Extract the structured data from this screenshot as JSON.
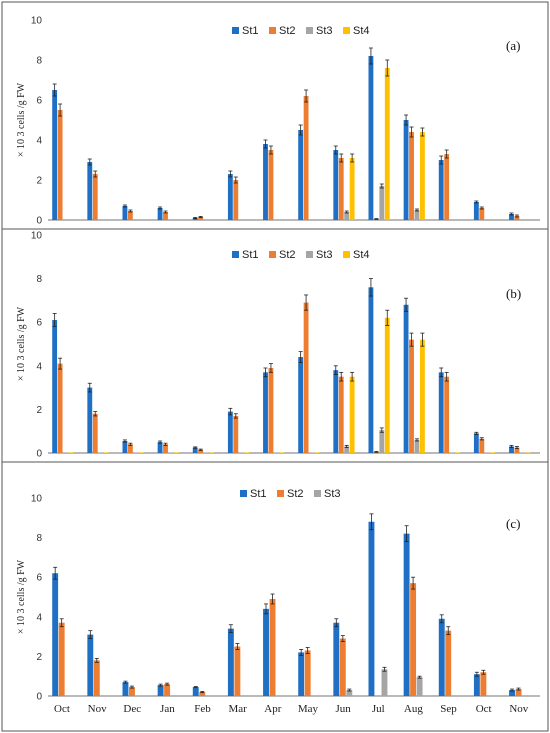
{
  "colors": {
    "St1": "#1f6fc4",
    "St2": "#ed7d31",
    "St3": "#a5a5a5",
    "St4": "#ffc000"
  },
  "chart_data": [
    {
      "type": "bar",
      "panel_label": "(a)",
      "ylabel": "× 10 3 cells /g FW",
      "ylim": [
        0,
        10
      ],
      "yticks": [
        0,
        2,
        4,
        6,
        8,
        10
      ],
      "legend_placement": "top-center",
      "categories": [
        "Oct",
        "Nov",
        "Dec",
        "Jan",
        "Feb",
        "Mar",
        "Apr",
        "May",
        "Jun",
        "Jul",
        "Aug",
        "Sep",
        "Oct",
        "Nov"
      ],
      "show_category_labels": false,
      "series": [
        {
          "name": "St1",
          "values": [
            6.5,
            2.9,
            0.7,
            0.6,
            0.1,
            2.3,
            3.8,
            4.5,
            3.5,
            8.2,
            5.0,
            3.0,
            0.9,
            0.3
          ],
          "errors": [
            0.3,
            0.15,
            0.05,
            0.05,
            0.03,
            0.15,
            0.2,
            0.25,
            0.2,
            0.4,
            0.25,
            0.2,
            0.05,
            0.05
          ]
        },
        {
          "name": "St2",
          "values": [
            5.5,
            2.3,
            0.45,
            0.4,
            0.15,
            2.0,
            3.5,
            6.2,
            3.1,
            0.05,
            4.4,
            3.3,
            0.6,
            0.2
          ],
          "errors": [
            0.3,
            0.15,
            0.05,
            0.05,
            0.03,
            0.15,
            0.2,
            0.3,
            0.2,
            0.02,
            0.25,
            0.2,
            0.05,
            0.05
          ]
        },
        {
          "name": "St3",
          "values": [
            null,
            null,
            null,
            null,
            null,
            null,
            null,
            null,
            0.4,
            1.7,
            0.5,
            null,
            null,
            null
          ],
          "errors": [
            null,
            null,
            null,
            null,
            null,
            null,
            null,
            null,
            0.05,
            0.1,
            0.05,
            null,
            null,
            null
          ]
        },
        {
          "name": "St4",
          "values": [
            null,
            null,
            null,
            null,
            null,
            null,
            null,
            null,
            3.1,
            7.6,
            4.4,
            null,
            null,
            null
          ],
          "errors": [
            null,
            null,
            null,
            null,
            null,
            null,
            null,
            null,
            0.2,
            0.4,
            0.2,
            null,
            null,
            null
          ]
        }
      ]
    },
    {
      "type": "bar",
      "panel_label": "(b)",
      "ylabel": "× 10 3 cells /g FW",
      "ylim": [
        0,
        10
      ],
      "yticks": [
        0,
        2,
        4,
        6,
        8,
        10
      ],
      "legend_placement": "top-center",
      "categories": [
        "Oct",
        "Nov",
        "Dec",
        "Jan",
        "Feb",
        "Mar",
        "Apr",
        "May",
        "Jun",
        "Jul",
        "Aug",
        "Sep",
        "Oct",
        "Nov"
      ],
      "show_category_labels": false,
      "series": [
        {
          "name": "St1",
          "values": [
            6.1,
            3.0,
            0.55,
            0.5,
            0.25,
            1.9,
            3.7,
            4.4,
            3.8,
            7.6,
            6.8,
            3.7,
            0.9,
            0.3
          ],
          "errors": [
            0.3,
            0.2,
            0.05,
            0.05,
            0.03,
            0.15,
            0.2,
            0.25,
            0.2,
            0.4,
            0.3,
            0.2,
            0.05,
            0.05
          ]
        },
        {
          "name": "St2",
          "values": [
            4.1,
            1.8,
            0.4,
            0.4,
            0.15,
            1.7,
            3.9,
            6.9,
            3.5,
            0.05,
            5.2,
            3.5,
            0.65,
            0.25
          ],
          "errors": [
            0.25,
            0.1,
            0.05,
            0.05,
            0.03,
            0.1,
            0.2,
            0.35,
            0.2,
            0.02,
            0.3,
            0.2,
            0.05,
            0.05
          ]
        },
        {
          "name": "St3",
          "values": [
            0.02,
            0.02,
            0.02,
            0.02,
            0.02,
            0.02,
            0.02,
            0.02,
            0.3,
            1.05,
            0.6,
            0.02,
            0.02,
            0.02
          ],
          "errors": [
            null,
            null,
            null,
            null,
            null,
            null,
            null,
            null,
            0.05,
            0.1,
            0.05,
            null,
            null,
            null
          ]
        },
        {
          "name": "St4",
          "values": [
            0.02,
            0.02,
            0.02,
            0.02,
            0.02,
            0.02,
            0.02,
            0.02,
            3.5,
            6.2,
            5.2,
            0.02,
            0.02,
            0.02
          ],
          "errors": [
            null,
            null,
            null,
            null,
            null,
            null,
            null,
            null,
            0.2,
            0.35,
            0.3,
            null,
            null,
            null
          ]
        }
      ]
    },
    {
      "type": "bar",
      "panel_label": "(c)",
      "ylabel": "× 10 3 cells /g FW",
      "ylim": [
        0,
        10
      ],
      "yticks": [
        0,
        2,
        4,
        6,
        8,
        10
      ],
      "legend_placement": "top-center",
      "categories": [
        "Oct",
        "Nov",
        "Dec",
        "Jan",
        "Feb",
        "Mar",
        "Apr",
        "May",
        "Jun",
        "Jul",
        "Aug",
        "Sep",
        "Oct",
        "Nov"
      ],
      "show_category_labels": true,
      "series": [
        {
          "name": "St1",
          "values": [
            6.2,
            3.1,
            0.7,
            0.55,
            0.45,
            3.4,
            4.4,
            2.2,
            3.7,
            8.8,
            8.2,
            3.9,
            1.1,
            0.3
          ],
          "errors": [
            0.3,
            0.2,
            0.05,
            0.05,
            0.03,
            0.2,
            0.25,
            0.15,
            0.2,
            0.4,
            0.4,
            0.2,
            0.1,
            0.05
          ]
        },
        {
          "name": "St2",
          "values": [
            3.7,
            1.8,
            0.45,
            0.6,
            0.2,
            2.5,
            4.9,
            2.3,
            2.9,
            null,
            5.7,
            3.3,
            1.2,
            0.35
          ],
          "errors": [
            0.2,
            0.1,
            0.05,
            0.05,
            0.03,
            0.15,
            0.25,
            0.15,
            0.15,
            null,
            0.3,
            0.2,
            0.1,
            0.05
          ]
        },
        {
          "name": "St3",
          "values": [
            null,
            null,
            null,
            null,
            null,
            null,
            null,
            null,
            0.3,
            1.35,
            0.95,
            null,
            null,
            null
          ],
          "errors": [
            null,
            null,
            null,
            null,
            null,
            null,
            null,
            null,
            0.05,
            0.1,
            0.05,
            null,
            null,
            null
          ]
        }
      ]
    }
  ]
}
